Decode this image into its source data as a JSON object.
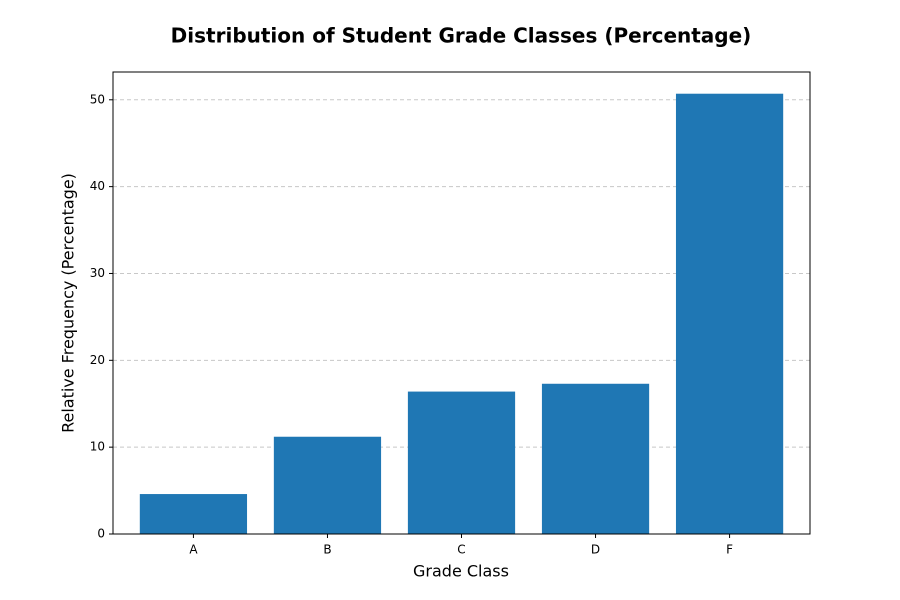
{
  "chart_data": {
    "type": "bar",
    "title": "Distribution of Student Grade Classes (Percentage)",
    "x_label": "Grade Class",
    "y_label": "Relative Frequency (Percentage)",
    "categories": [
      "A",
      "B",
      "C",
      "D",
      "F"
    ],
    "values": [
      4.6,
      11.2,
      16.4,
      17.3,
      50.7
    ],
    "color": "#1f77b4",
    "ylim": [
      0,
      53.2
    ],
    "yticks": [
      0,
      10,
      20,
      30,
      40,
      50
    ],
    "grid": true
  }
}
